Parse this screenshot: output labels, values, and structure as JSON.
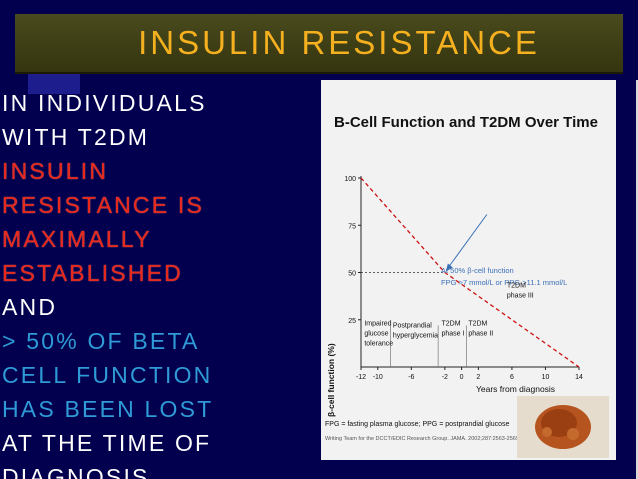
{
  "title": "INSULIN RESISTANCE",
  "left_lines": [
    {
      "text": "IN INDIVIDUALS",
      "style": "w"
    },
    {
      "text": "WITH T2DM",
      "style": "w"
    },
    {
      "text": "INSULIN",
      "style": "r"
    },
    {
      "text": "RESISTANCE IS",
      "style": "r"
    },
    {
      "text": "MAXIMALLY",
      "style": "r"
    },
    {
      "text": "ESTABLISHED",
      "style": "r"
    },
    {
      "text": "AND",
      "style": "w"
    },
    {
      "text": "> 50% OF BETA",
      "style": "c"
    },
    {
      "text": "CELL FUNCTION",
      "style": "c"
    },
    {
      "text": "HAS BEEN LOST",
      "style": "c"
    },
    {
      "text": "AT THE TIME OF",
      "style": "wb"
    },
    {
      "text": "DIAGNOSIS",
      "style": "w"
    }
  ],
  "figure": {
    "title": "B-Cell Function and T2DM Over Time",
    "annotation_line1": "At 50% β-cell function",
    "annotation_line2": "FPG >7 mmol/L or PPG >11.1 mmol/L",
    "phases": [
      {
        "line1": "Impaired",
        "line2": "glucose",
        "line3": "tolerance"
      },
      {
        "line1": "Postprandial",
        "line2": "hyperglycemia",
        "line3": ""
      },
      {
        "line1": "T2DM",
        "line2": "phase I",
        "line3": ""
      },
      {
        "line1": "T2DM",
        "line2": "phase II",
        "line3": ""
      },
      {
        "line1": "T2DM",
        "line2": "phase III",
        "line3": ""
      }
    ],
    "footnote": "FPG = fasting plasma glucose; PPG = postprandial glucose",
    "citation": "Writing Team for the DCCT/EDIC Research Group. JAMA. 2002;287:2563-2569."
  },
  "chart_data": {
    "type": "line",
    "title": "B-Cell Function and T2DM Over Time",
    "xlabel": "Years from diagnosis",
    "ylabel": "β-cell function (%)",
    "xlim": [
      -12,
      14
    ],
    "ylim": [
      0,
      100
    ],
    "x_ticks": [
      -12,
      -10,
      -6,
      -2,
      0,
      2,
      6,
      10,
      14
    ],
    "y_ticks": [
      25,
      50,
      75,
      100
    ],
    "series": [
      {
        "x": [
          -12,
          -2,
          14
        ],
        "values": [
          100,
          50,
          0
        ],
        "color": "#cc1111",
        "style": "dashed"
      }
    ],
    "reference_point": {
      "x": -2,
      "y": 50
    }
  }
}
